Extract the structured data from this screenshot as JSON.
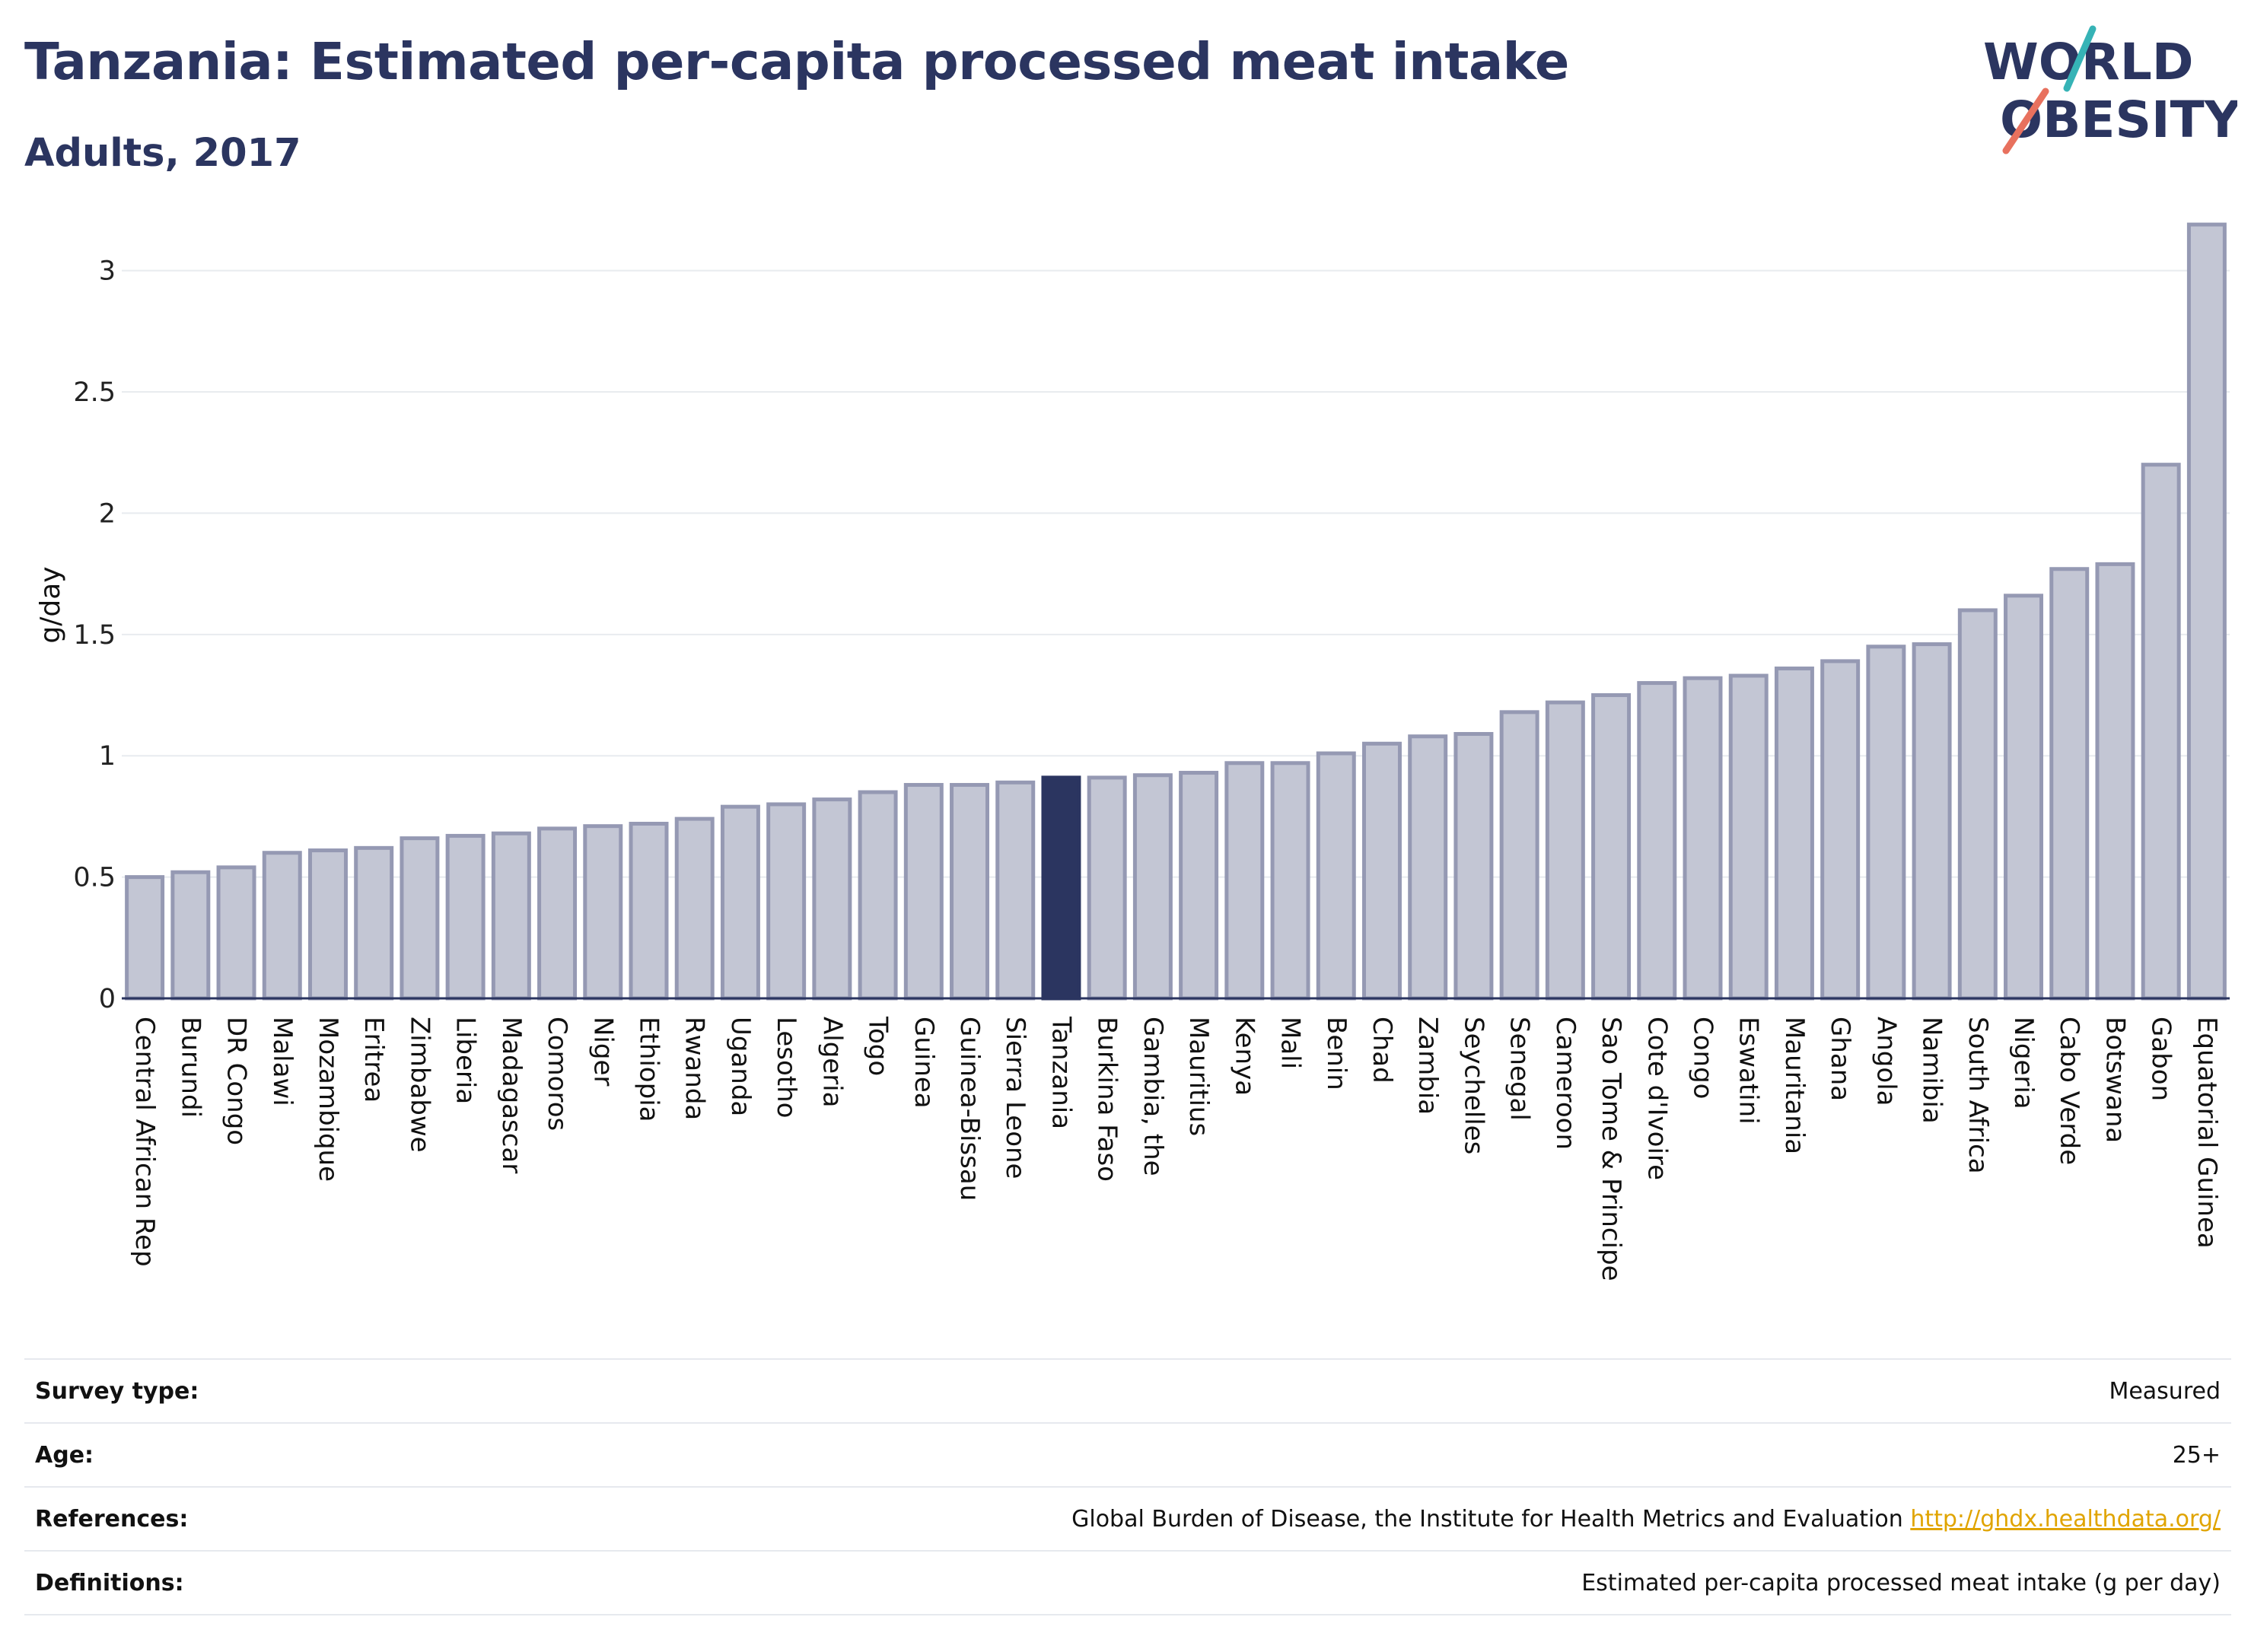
{
  "header": {
    "title": "Tanzania: Estimated per-capita processed meat intake",
    "subtitle": "Adults, 2017"
  },
  "logo": {
    "line1": "WORLD",
    "line2": "OBESITY"
  },
  "colors": {
    "highlight": "#2b3560",
    "bar_fill": "#c3c6d4",
    "bar_stroke": "#9599b3",
    "grid": "#e8ebef",
    "logo_text": "#2b3560",
    "logo_teal": "#36b3b6",
    "logo_coral": "#e8715e"
  },
  "chart_data": {
    "type": "bar",
    "title": "Tanzania: Estimated per-capita processed meat intake",
    "subtitle": "Adults, 2017",
    "xlabel": "",
    "ylabel": "g/day",
    "ylim": [
      0,
      3.3
    ],
    "yticks": [
      0,
      0.5,
      1,
      1.5,
      2,
      2.5,
      3
    ],
    "ytick_labels": [
      "0",
      "0.5",
      "1",
      "1.5",
      "2",
      "2.5",
      "3"
    ],
    "grid": true,
    "highlight": "Tanzania",
    "categories": [
      "Central African Rep",
      "Burundi",
      "DR Congo",
      "Malawi",
      "Mozambique",
      "Eritrea",
      "Zimbabwe",
      "Liberia",
      "Madagascar",
      "Comoros",
      "Niger",
      "Ethiopia",
      "Rwanda",
      "Uganda",
      "Lesotho",
      "Algeria",
      "Togo",
      "Guinea",
      "Guinea-Bissau",
      "Sierra Leone",
      "Tanzania",
      "Burkina Faso",
      "Gambia, the",
      "Mauritius",
      "Kenya",
      "Mali",
      "Benin",
      "Chad",
      "Zambia",
      "Seychelles",
      "Senegal",
      "Cameroon",
      "Sao Tome & Principe",
      "Cote d'Ivoire",
      "Congo",
      "Eswatini",
      "Mauritania",
      "Ghana",
      "Angola",
      "Namibia",
      "South Africa",
      "Nigeria",
      "Cabo Verde",
      "Botswana",
      "Gabon",
      "Equatorial Guinea"
    ],
    "values": [
      0.5,
      0.52,
      0.54,
      0.6,
      0.61,
      0.62,
      0.66,
      0.67,
      0.68,
      0.7,
      0.71,
      0.72,
      0.74,
      0.79,
      0.8,
      0.82,
      0.85,
      0.88,
      0.88,
      0.89,
      0.91,
      0.91,
      0.92,
      0.93,
      0.97,
      0.97,
      1.01,
      1.05,
      1.08,
      1.09,
      1.18,
      1.22,
      1.25,
      1.3,
      1.32,
      1.33,
      1.36,
      1.39,
      1.45,
      1.46,
      1.6,
      1.66,
      1.77,
      1.79,
      2.2,
      3.19
    ]
  },
  "meta": [
    {
      "key": "Survey type:",
      "value": "Measured"
    },
    {
      "key": "Age:",
      "value": "25+"
    },
    {
      "key": "References:",
      "value": "Global Burden of Disease, the Institute for Health Metrics and Evaluation",
      "link": "http://ghdx.healthdata.org/"
    },
    {
      "key": "Definitions:",
      "value": "Estimated per-capita processed meat intake (g per day)"
    }
  ]
}
